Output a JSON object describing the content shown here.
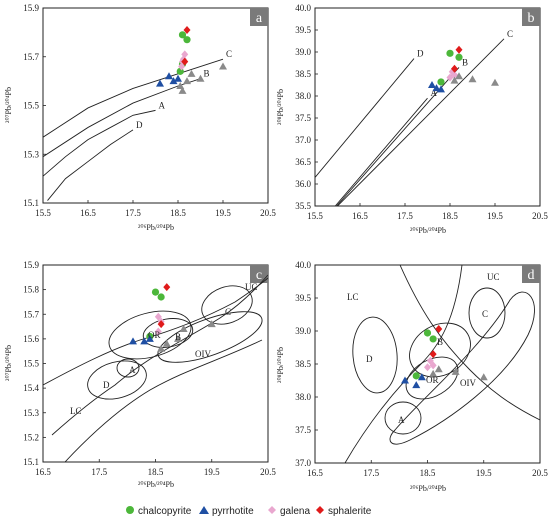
{
  "legend": [
    {
      "label": "chalcopyrite",
      "color": "#4cb73a",
      "marker": "circle"
    },
    {
      "label": "pyrrhotite",
      "color": "#1f4fa3",
      "marker": "triangle"
    },
    {
      "label": "galena",
      "color": "#e9a7cf",
      "marker": "diamond"
    },
    {
      "label": "sphalerite",
      "color": "#e01b1b",
      "marker": "diamond"
    }
  ],
  "unlabeled_marker_color": "#8a8a8a",
  "chart_data": [
    {
      "panel": "a",
      "type": "scatter",
      "xlabel": "206Pb/204Pb",
      "ylabel": "207Pb/204Pb",
      "xlim": [
        15.5,
        20.5
      ],
      "ylim": [
        15.1,
        15.9
      ],
      "xticks": [
        "15.5",
        "16.5",
        "17.5",
        "18.5",
        "19.5",
        "20.5"
      ],
      "yticks": [
        "15.1",
        "15.3",
        "15.5",
        "15.7",
        "15.9"
      ],
      "curves": [
        {
          "name": "C",
          "points": [
            [
              15.5,
              15.37
            ],
            [
              16.5,
              15.49
            ],
            [
              17.5,
              15.57
            ],
            [
              18.5,
              15.63
            ],
            [
              19.5,
              15.69
            ]
          ]
        },
        {
          "name": "B",
          "points": [
            [
              15.5,
              15.29
            ],
            [
              16.5,
              15.41
            ],
            [
              17.5,
              15.51
            ],
            [
              18.5,
              15.58
            ],
            [
              19.0,
              15.61
            ]
          ]
        },
        {
          "name": "A",
          "points": [
            [
              15.5,
              15.21
            ],
            [
              16.0,
              15.29
            ],
            [
              16.5,
              15.36
            ],
            [
              17.0,
              15.41
            ],
            [
              17.5,
              15.46
            ],
            [
              18.0,
              15.48
            ]
          ]
        },
        {
          "name": "D",
          "points": [
            [
              15.6,
              15.11
            ],
            [
              16.0,
              15.2
            ],
            [
              16.5,
              15.27
            ],
            [
              17.0,
              15.34
            ],
            [
              17.5,
              15.4
            ]
          ]
        }
      ],
      "series": [
        {
          "name": "chalcopyrite",
          "points": [
            [
              18.6,
              15.79
            ],
            [
              18.7,
              15.77
            ],
            [
              18.6,
              15.67
            ],
            [
              18.55,
              15.64
            ]
          ]
        },
        {
          "name": "pyrrhotite",
          "points": [
            [
              18.1,
              15.59
            ],
            [
              18.4,
              15.6
            ],
            [
              18.5,
              15.61
            ],
            [
              18.3,
              15.62
            ]
          ]
        },
        {
          "name": "galena",
          "points": [
            [
              18.65,
              15.71
            ],
            [
              18.62,
              15.69
            ],
            [
              18.6,
              15.68
            ],
            [
              18.58,
              15.66
            ]
          ]
        },
        {
          "name": "sphalerite",
          "points": [
            [
              18.7,
              15.81
            ],
            [
              18.65,
              15.68
            ]
          ]
        },
        {
          "name": "",
          "points": [
            [
              18.6,
              15.56
            ],
            [
              18.55,
              15.58
            ],
            [
              18.7,
              15.6
            ],
            [
              19.0,
              15.61
            ],
            [
              19.5,
              15.66
            ],
            [
              18.8,
              15.63
            ]
          ]
        }
      ]
    },
    {
      "panel": "b",
      "type": "scatter",
      "xlabel": "206Pb/204Pb",
      "ylabel": "208Pb/204Pb",
      "xlim": [
        15.5,
        20.5
      ],
      "ylim": [
        35.5,
        40.0
      ],
      "xticks": [
        "15.5",
        "16.5",
        "17.5",
        "18.5",
        "19.5",
        "20.5"
      ],
      "yticks": [
        "35.5",
        "36.0",
        "36.5",
        "37.0",
        "37.5",
        "38.0",
        "38.5",
        "39.0",
        "39.5",
        "40.0"
      ],
      "curves": [
        {
          "name": "D",
          "points": [
            [
              15.5,
              36.15
            ],
            [
              17.7,
              38.85
            ]
          ]
        },
        {
          "name": "C",
          "points": [
            [
              16.0,
              35.5
            ],
            [
              19.7,
              39.3
            ]
          ]
        },
        {
          "name": "B",
          "points": [
            [
              15.98,
              35.5
            ],
            [
              18.7,
              38.65
            ]
          ]
        },
        {
          "name": "A",
          "points": [
            [
              15.95,
              35.5
            ],
            [
              18.0,
              37.95
            ]
          ]
        }
      ],
      "series": [
        {
          "name": "chalcopyrite",
          "points": [
            [
              18.5,
              38.97
            ],
            [
              18.7,
              38.88
            ],
            [
              18.3,
              38.32
            ]
          ]
        },
        {
          "name": "pyrrhotite",
          "points": [
            [
              18.1,
              38.25
            ],
            [
              18.3,
              38.15
            ],
            [
              18.2,
              38.18
            ]
          ]
        },
        {
          "name": "galena",
          "points": [
            [
              18.55,
              38.55
            ],
            [
              18.6,
              38.48
            ],
            [
              18.5,
              38.42
            ]
          ]
        },
        {
          "name": "sphalerite",
          "points": [
            [
              18.7,
              39.05
            ],
            [
              18.6,
              38.62
            ]
          ]
        },
        {
          "name": "",
          "points": [
            [
              18.6,
              38.35
            ],
            [
              19.0,
              38.38
            ],
            [
              19.5,
              38.3
            ],
            [
              18.7,
              38.45
            ]
          ]
        }
      ]
    },
    {
      "panel": "c",
      "type": "scatter",
      "xlabel": "206Pb/204Pb",
      "ylabel": "207Pb/204Pb",
      "xlim": [
        16.5,
        20.5
      ],
      "ylim": [
        15.1,
        15.9
      ],
      "xticks": [
        "16.5",
        "17.5",
        "18.5",
        "19.5",
        "20.5"
      ],
      "yticks": [
        "15.1",
        "15.2",
        "15.3",
        "15.4",
        "15.5",
        "15.6",
        "15.7",
        "15.8",
        "15.9"
      ],
      "regions": [
        "UC",
        "OR",
        "B",
        "OIV",
        "D",
        "A",
        "LC",
        "C"
      ],
      "series": [
        {
          "name": "chalcopyrite",
          "points": [
            [
              18.5,
              15.79
            ],
            [
              18.6,
              15.77
            ],
            [
              18.4,
              15.61
            ]
          ]
        },
        {
          "name": "pyrrhotite",
          "points": [
            [
              18.1,
              15.59
            ],
            [
              18.4,
              15.6
            ],
            [
              18.3,
              15.59
            ]
          ]
        },
        {
          "name": "galena",
          "points": [
            [
              18.55,
              15.69
            ],
            [
              18.6,
              15.67
            ],
            [
              18.55,
              15.63
            ]
          ]
        },
        {
          "name": "sphalerite",
          "points": [
            [
              18.7,
              15.81
            ],
            [
              18.6,
              15.66
            ]
          ]
        },
        {
          "name": "",
          "points": [
            [
              18.6,
              15.56
            ],
            [
              18.9,
              15.6
            ],
            [
              19.0,
              15.64
            ],
            [
              19.5,
              15.66
            ],
            [
              18.7,
              15.58
            ]
          ]
        }
      ]
    },
    {
      "panel": "d",
      "type": "scatter",
      "xlabel": "206Pb/204Pb",
      "ylabel": "208Pb/204Pb",
      "xlim": [
        16.5,
        20.5
      ],
      "ylim": [
        37.0,
        40.0
      ],
      "xticks": [
        "16.5",
        "17.5",
        "18.5",
        "19.5",
        "20.5"
      ],
      "yticks": [
        "37.0",
        "37.5",
        "38.0",
        "38.5",
        "39.0",
        "39.5",
        "40.0"
      ],
      "regions": [
        "UC",
        "LC",
        "C",
        "D",
        "B",
        "OR",
        "OIV",
        "A"
      ],
      "series": [
        {
          "name": "chalcopyrite",
          "points": [
            [
              18.5,
              38.97
            ],
            [
              18.6,
              38.88
            ],
            [
              18.3,
              38.32
            ]
          ]
        },
        {
          "name": "pyrrhotite",
          "points": [
            [
              18.1,
              38.25
            ],
            [
              18.3,
              38.18
            ],
            [
              18.4,
              38.3
            ]
          ]
        },
        {
          "name": "galena",
          "points": [
            [
              18.55,
              38.55
            ],
            [
              18.6,
              38.48
            ],
            [
              18.5,
              38.45
            ]
          ]
        },
        {
          "name": "sphalerite",
          "points": [
            [
              18.7,
              39.03
            ],
            [
              18.6,
              38.65
            ]
          ]
        },
        {
          "name": "",
          "points": [
            [
              18.6,
              38.35
            ],
            [
              19.0,
              38.38
            ],
            [
              19.5,
              38.3
            ],
            [
              18.7,
              38.42
            ]
          ]
        }
      ]
    }
  ]
}
